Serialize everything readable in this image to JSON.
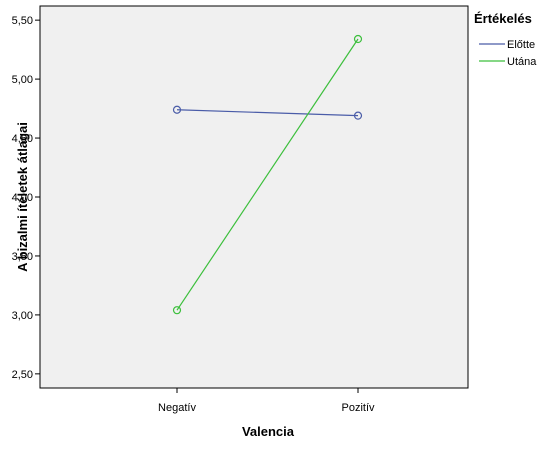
{
  "chart_data": {
    "type": "line",
    "xlabel": "Valencia",
    "ylabel": "A bizalmi ítéletek átlagai",
    "categories": [
      "Negatív",
      "Pozitív"
    ],
    "ylim": [
      2.38,
      5.62
    ],
    "yticks": [
      "2,50",
      "3,00",
      "3,50",
      "4,00",
      "4,50",
      "5,00",
      "5,50"
    ],
    "ytick_values": [
      2.5,
      3.0,
      3.5,
      4.0,
      4.5,
      5.0,
      5.5
    ],
    "grid": false,
    "legend": {
      "title": "Értékelés",
      "position": "right"
    },
    "series": [
      {
        "name": "Előtte",
        "values": [
          4.74,
          4.69
        ],
        "color": "#4a5ca8"
      },
      {
        "name": "Utána",
        "values": [
          3.04,
          5.34
        ],
        "color": "#3cbf3c"
      }
    ],
    "plot_background": "#f0f0f0"
  }
}
